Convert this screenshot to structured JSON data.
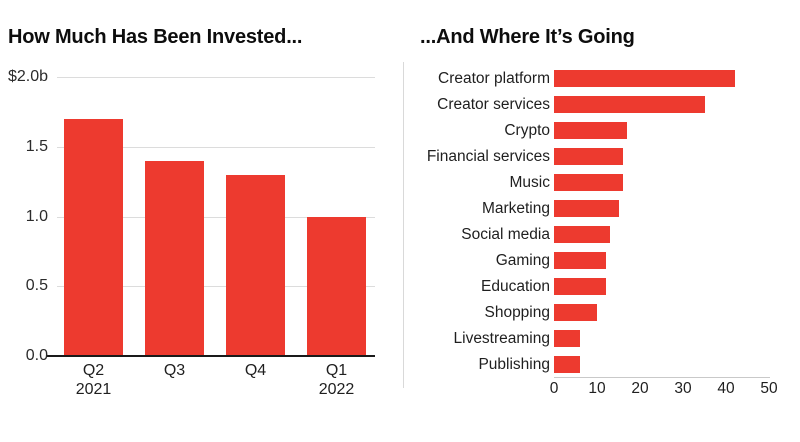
{
  "page": {
    "background": "#ffffff"
  },
  "colors": {
    "bar_red": "#ed3a2f",
    "gridline": "#dcdcdc",
    "baseline": "#1a1a1a",
    "axis_light": "#c9c9c9",
    "divider": "#d9d9d9",
    "title_text": "#0d0d0d",
    "label_text": "#1f1f1f"
  },
  "chart_data": [
    {
      "id": "investment-by-quarter",
      "type": "bar",
      "title": "How Much Has Been Invested...",
      "categories": [
        "Q2 2021",
        "Q3",
        "Q4",
        "Q1 2022"
      ],
      "values": [
        1.7,
        1.4,
        1.3,
        1.0
      ],
      "y_ticks": [
        {
          "value": 2.0,
          "label": "$2.0b"
        },
        {
          "value": 1.5,
          "label": "1.5"
        },
        {
          "value": 1.0,
          "label": "1.0"
        },
        {
          "value": 0.5,
          "label": "0.5"
        },
        {
          "value": 0.0,
          "label": "0.0"
        }
      ],
      "ylim": [
        0,
        2.0
      ],
      "unit": "$ billions",
      "grid": true,
      "legend": "none"
    },
    {
      "id": "investment-by-category",
      "type": "bar-horizontal",
      "title": "...And Where It’s Going",
      "categories": [
        "Creator platform",
        "Creator services",
        "Crypto",
        "Financial services",
        "Music",
        "Marketing",
        "Social media",
        "Gaming",
        "Education",
        "Shopping",
        "Livestreaming",
        "Publishing"
      ],
      "values": [
        42,
        35,
        17,
        16,
        16,
        15,
        13,
        12,
        12,
        10,
        6,
        6
      ],
      "x_ticks": [
        0,
        10,
        20,
        30,
        40,
        50
      ],
      "xlim": [
        0,
        50
      ],
      "grid": false,
      "legend": "none"
    }
  ]
}
